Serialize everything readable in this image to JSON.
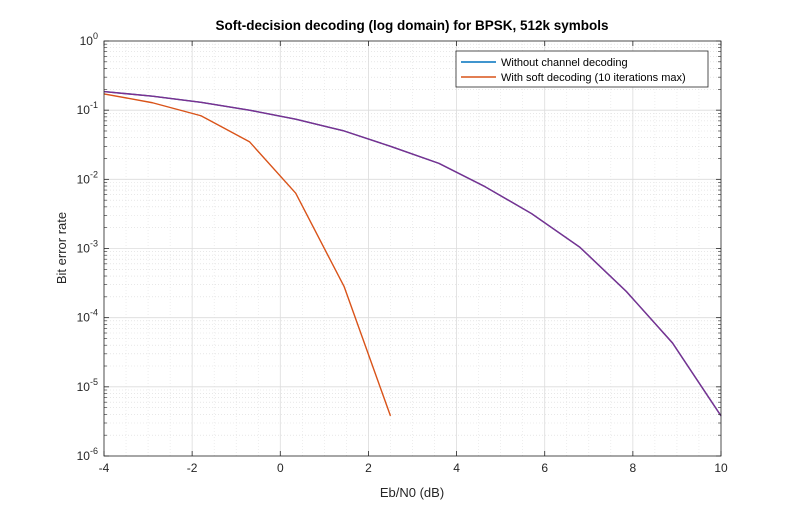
{
  "chart_data": {
    "type": "line",
    "title": "Soft-decision decoding (log domain) for BPSK, 512k symbols",
    "xlabel": "Eb/N0 (dB)",
    "ylabel": "Bit error rate",
    "xlim": [
      -4,
      10
    ],
    "ylim": [
      1e-06,
      1
    ],
    "yscale": "log",
    "grid": true,
    "minor_grid": true,
    "legend_position": "top-right",
    "x_ticks": [
      -4,
      -2,
      0,
      2,
      4,
      6,
      8,
      10
    ],
    "x_tick_labels": [
      "-4",
      "-2",
      "0",
      "2",
      "4",
      "6",
      "8",
      "10"
    ],
    "y_ticks": [
      {
        "value": 1,
        "base": "10",
        "exp": "0"
      },
      {
        "value": 0.1,
        "base": "10",
        "exp": "-1"
      },
      {
        "value": 0.01,
        "base": "10",
        "exp": "-2"
      },
      {
        "value": 0.001,
        "base": "10",
        "exp": "-3"
      },
      {
        "value": 0.0001,
        "base": "10",
        "exp": "-4"
      },
      {
        "value": 1e-05,
        "base": "10",
        "exp": "-5"
      },
      {
        "value": 1e-06,
        "base": "10",
        "exp": "-6"
      }
    ],
    "series": [
      {
        "name": "Without channel decoding",
        "color": "#0072BD",
        "x": [
          -4,
          -2.9,
          -1.8,
          -0.7,
          0.35,
          1.45,
          2.5,
          3.6,
          4.65,
          5.7,
          6.8,
          7.85,
          8.9,
          10
        ],
        "y": [
          0.186,
          0.159,
          0.13,
          0.1,
          0.074,
          0.05,
          0.03,
          0.017,
          0.0078,
          0.0032,
          0.00104,
          0.00024,
          4.3e-05,
          3.8e-06
        ]
      },
      {
        "name": "With soft decoding (10 iterations max)",
        "color": "#D95319",
        "x": [
          -4,
          -2.9,
          -1.8,
          -0.7,
          0.35,
          1.45,
          2.5
        ],
        "y": [
          0.172,
          0.128,
          0.083,
          0.035,
          0.0063,
          0.00028,
          3.8e-06
        ]
      },
      {
        "name": "",
        "color": "#7E2F8E",
        "x": [
          -4,
          -2.9,
          -1.8,
          -0.7,
          0.35,
          1.45,
          2.5,
          3.6,
          4.65,
          5.7,
          6.8,
          7.85,
          8.9,
          10
        ],
        "y": [
          0.186,
          0.159,
          0.13,
          0.1,
          0.074,
          0.05,
          0.03,
          0.017,
          0.0078,
          0.0032,
          0.00104,
          0.00024,
          4.3e-05,
          3.8e-06
        ]
      }
    ],
    "legend_series": [
      0,
      1
    ]
  }
}
